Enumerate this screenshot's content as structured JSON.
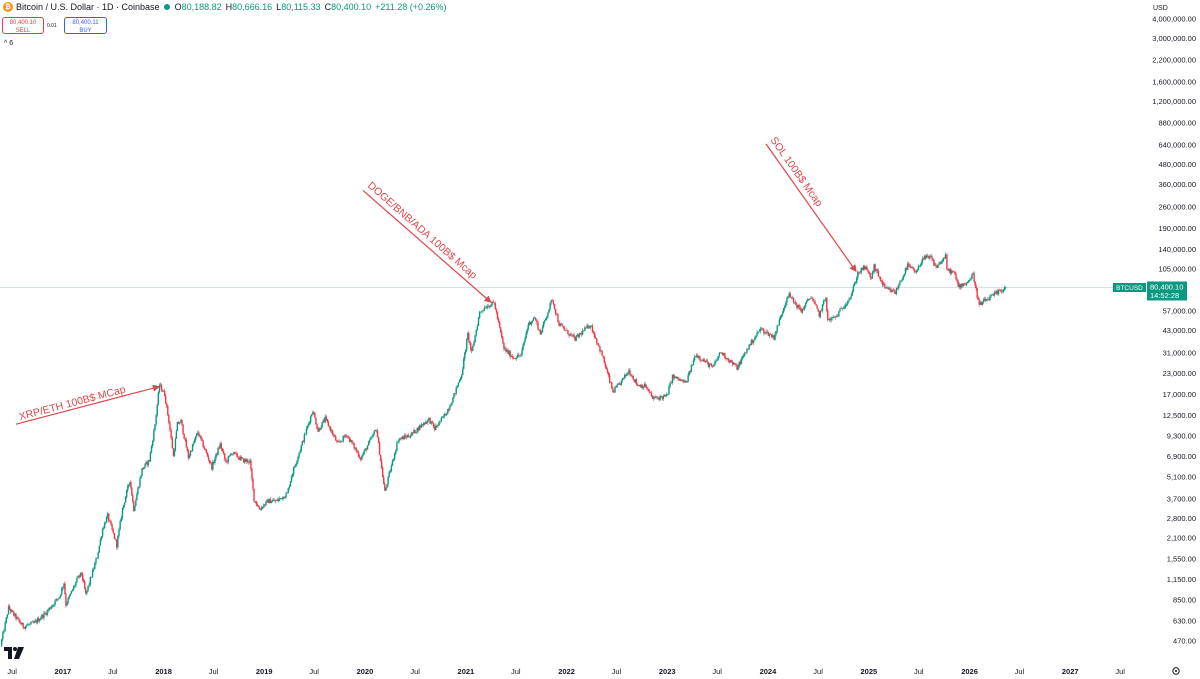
{
  "header": {
    "coin_symbol": "₿",
    "title": "Bitcoin / U.S. Dollar · 1D · Coinbase",
    "ohlc": [
      {
        "key": "O",
        "value": "80,188.82"
      },
      {
        "key": "H",
        "value": "80,666.16"
      },
      {
        "key": "L",
        "value": "80,115.33"
      },
      {
        "key": "C",
        "value": "80,400.10"
      }
    ],
    "change": "+211.28 (+0.26%)",
    "status_color": "#089981"
  },
  "trade": {
    "sell_price": "80,400.10",
    "sell_label": "SELL",
    "spread": "0.01",
    "buy_price": "80,400.11",
    "buy_label": "BUY",
    "collapse_label": "^ 6"
  },
  "price_axis": {
    "currency": "USD",
    "ticks": [
      "4,000,000.00",
      "3,000,000.00",
      "2,200,000.00",
      "1,600,000.00",
      "1,200,000.00",
      "880,000.00",
      "640,000.00",
      "480,000.00",
      "360,000.00",
      "260,000.00",
      "190,000.00",
      "140,000.00",
      "105,000.00",
      "57,000.00",
      "43,000.00",
      "31,000.00",
      "23,000.00",
      "17,000.00",
      "12,500.00",
      "9,300.00",
      "6,900.00",
      "5,100.00",
      "3,700.00",
      "2,800.00",
      "2,100.00",
      "1,550.00",
      "1,150.00",
      "850.00",
      "630.00",
      "470.00"
    ]
  },
  "chart_data": {
    "type": "candlestick",
    "y_scale": "log",
    "ylim": [
      400,
      4300000
    ],
    "xlim": [
      "2016-05-18",
      "2027-10-10"
    ],
    "x_ticks": [
      {
        "label": "Jul",
        "date": "2016-07-01"
      },
      {
        "label": "2017",
        "date": "2017-01-01"
      },
      {
        "label": "Jul",
        "date": "2017-07-01"
      },
      {
        "label": "2018",
        "date": "2018-01-01"
      },
      {
        "label": "Jul",
        "date": "2018-07-01"
      },
      {
        "label": "2019",
        "date": "2019-01-01"
      },
      {
        "label": "Jul",
        "date": "2019-07-01"
      },
      {
        "label": "2020",
        "date": "2020-01-01"
      },
      {
        "label": "Jul",
        "date": "2020-07-01"
      },
      {
        "label": "2021",
        "date": "2021-01-01"
      },
      {
        "label": "Jul",
        "date": "2021-07-01"
      },
      {
        "label": "2022",
        "date": "2022-01-01"
      },
      {
        "label": "Jul",
        "date": "2022-07-01"
      },
      {
        "label": "2023",
        "date": "2023-01-01"
      },
      {
        "label": "Jul",
        "date": "2023-07-01"
      },
      {
        "label": "2024",
        "date": "2024-01-01"
      },
      {
        "label": "Jul",
        "date": "2024-07-01"
      },
      {
        "label": "2025",
        "date": "2025-01-01"
      },
      {
        "label": "Jul",
        "date": "2025-07-01"
      },
      {
        "label": "2026",
        "date": "2026-01-01"
      },
      {
        "label": "Jul",
        "date": "2026-07-01"
      },
      {
        "label": "2027",
        "date": "2027-01-01"
      },
      {
        "label": "Jul",
        "date": "2027-07-01"
      }
    ],
    "series": [
      {
        "up_color": "#089981",
        "down_color": "#f23645",
        "points": [
          [
            "2016-05-20",
            440
          ],
          [
            "2016-06-18",
            760
          ],
          [
            "2016-07-15",
            660
          ],
          [
            "2016-08-10",
            580
          ],
          [
            "2016-09-20",
            610
          ],
          [
            "2016-11-01",
            710
          ],
          [
            "2016-12-20",
            900
          ],
          [
            "2017-01-05",
            1100
          ],
          [
            "2017-01-12",
            800
          ],
          [
            "2017-02-25",
            1180
          ],
          [
            "2017-03-10",
            1250
          ],
          [
            "2017-03-25",
            920
          ],
          [
            "2017-05-05",
            1600
          ],
          [
            "2017-05-25",
            2400
          ],
          [
            "2017-06-12",
            2900
          ],
          [
            "2017-07-15",
            1900
          ],
          [
            "2017-08-05",
            3200
          ],
          [
            "2017-09-01",
            4900
          ],
          [
            "2017-09-15",
            3200
          ],
          [
            "2017-10-15",
            5700
          ],
          [
            "2017-11-10",
            6500
          ],
          [
            "2017-12-01",
            11000
          ],
          [
            "2017-12-17",
            19500
          ],
          [
            "2018-01-05",
            17000
          ],
          [
            "2018-01-20",
            11500
          ],
          [
            "2018-02-06",
            6900
          ],
          [
            "2018-02-20",
            11000
          ],
          [
            "2018-03-05",
            11500
          ],
          [
            "2018-04-01",
            6800
          ],
          [
            "2018-05-05",
            9800
          ],
          [
            "2018-06-25",
            5900
          ],
          [
            "2018-07-25",
            8200
          ],
          [
            "2018-08-15",
            6300
          ],
          [
            "2018-09-05",
            7300
          ],
          [
            "2018-10-15",
            6500
          ],
          [
            "2018-11-10",
            6400
          ],
          [
            "2018-11-25",
            3700
          ],
          [
            "2018-12-15",
            3200
          ],
          [
            "2019-01-15",
            3600
          ],
          [
            "2019-02-15",
            3600
          ],
          [
            "2019-03-25",
            4000
          ],
          [
            "2019-04-10",
            5200
          ],
          [
            "2019-05-15",
            8000
          ],
          [
            "2019-06-26",
            13500
          ],
          [
            "2019-07-15",
            10000
          ],
          [
            "2019-08-10",
            11900
          ],
          [
            "2019-09-25",
            8200
          ],
          [
            "2019-10-26",
            9500
          ],
          [
            "2019-12-17",
            6700
          ],
          [
            "2020-02-12",
            10300
          ],
          [
            "2020-03-13",
            4100
          ],
          [
            "2020-04-30",
            8800
          ],
          [
            "2020-06-15",
            9400
          ],
          [
            "2020-07-28",
            11000
          ],
          [
            "2020-08-20",
            11800
          ],
          [
            "2020-09-10",
            10300
          ],
          [
            "2020-10-20",
            12800
          ],
          [
            "2020-11-15",
            16000
          ],
          [
            "2020-12-17",
            23000
          ],
          [
            "2021-01-08",
            40500
          ],
          [
            "2021-01-22",
            31000
          ],
          [
            "2021-02-20",
            56000
          ],
          [
            "2021-03-13",
            61000
          ],
          [
            "2021-04-14",
            64000
          ],
          [
            "2021-05-19",
            33000
          ],
          [
            "2021-06-22",
            29000
          ],
          [
            "2021-07-20",
            30000
          ],
          [
            "2021-08-15",
            47000
          ],
          [
            "2021-09-07",
            52000
          ],
          [
            "2021-09-28",
            41000
          ],
          [
            "2021-11-10",
            68000
          ],
          [
            "2021-12-05",
            47000
          ],
          [
            "2022-01-10",
            41000
          ],
          [
            "2022-02-01",
            38000
          ],
          [
            "2022-03-28",
            47000
          ],
          [
            "2022-05-10",
            30000
          ],
          [
            "2022-06-18",
            17600
          ],
          [
            "2022-07-15",
            20000
          ],
          [
            "2022-08-15",
            24000
          ],
          [
            "2022-09-15",
            19500
          ],
          [
            "2022-10-15",
            19100
          ],
          [
            "2022-11-09",
            16000
          ],
          [
            "2022-12-30",
            16500
          ],
          [
            "2023-01-20",
            22000
          ],
          [
            "2023-03-10",
            20000
          ],
          [
            "2023-04-14",
            30500
          ],
          [
            "2023-06-15",
            25000
          ],
          [
            "2023-07-13",
            31500
          ],
          [
            "2023-09-11",
            25000
          ],
          [
            "2023-10-25",
            34500
          ],
          [
            "2023-12-05",
            44000
          ],
          [
            "2024-01-23",
            39000
          ],
          [
            "2024-03-14",
            73000
          ],
          [
            "2024-05-01",
            57000
          ],
          [
            "2024-06-05",
            71000
          ],
          [
            "2024-07-05",
            54000
          ],
          [
            "2024-07-29",
            70000
          ],
          [
            "2024-08-05",
            49500
          ],
          [
            "2024-09-06",
            53000
          ],
          [
            "2024-10-29",
            72000
          ],
          [
            "2024-11-22",
            99000
          ],
          [
            "2024-12-17",
            108000
          ],
          [
            "2025-01-10",
            92000
          ],
          [
            "2025-01-20",
            109000
          ],
          [
            "2025-02-28",
            79000
          ],
          [
            "2025-04-07",
            75000
          ],
          [
            "2025-05-22",
            111000
          ],
          [
            "2025-06-22",
            99000
          ],
          [
            "2025-07-14",
            123000
          ],
          [
            "2025-08-14",
            124000
          ],
          [
            "2025-09-01",
            108000
          ],
          [
            "2025-10-06",
            126000
          ],
          [
            "2025-10-11",
            104000
          ],
          [
            "2025-11-05",
            100000
          ],
          [
            "2025-11-21",
            82000
          ],
          [
            "2025-12-25",
            87000
          ],
          [
            "2026-01-14",
            97000
          ],
          [
            "2026-02-05",
            62000
          ],
          [
            "2026-02-25",
            66000
          ],
          [
            "2026-03-20",
            70000
          ],
          [
            "2026-04-20",
            76000
          ],
          [
            "2026-05-12",
            80400
          ]
        ]
      }
    ],
    "last_price": {
      "symbol": "BTCUSD",
      "value": "80,400.10",
      "countdown": "14:52:28"
    },
    "annotations": [
      {
        "label": "XRP/ETH 100B$ MCap",
        "arrow_from": [
          "2016-07-15",
          11000
        ],
        "arrow_to": [
          "2017-12-15",
          19000
        ]
      },
      {
        "label": "DOGE/BNB/ADA 100B$ Mcap",
        "arrow_from": [
          "2019-12-25",
          330000
        ],
        "arrow_to": [
          "2021-04-01",
          65000
        ]
      },
      {
        "label": "SOL 100B$ Mcap",
        "arrow_from": [
          "2023-12-25",
          650000
        ],
        "arrow_to": [
          "2024-11-15",
          102000
        ]
      }
    ],
    "annotation_color": "#e0474c",
    "grid": false
  }
}
